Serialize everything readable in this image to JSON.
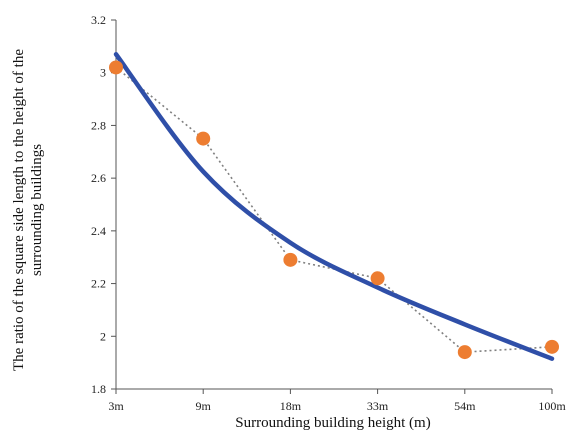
{
  "chart_data": {
    "type": "scatter",
    "title": "",
    "xlabel": "Surrounding building height (m)",
    "ylabel_line1": "The ratio of the square side length to the height of the",
    "ylabel_line2": "surrounding buildings",
    "categories": [
      "3m",
      "9m",
      "18m",
      "33m",
      "54m",
      "100m"
    ],
    "ylim": [
      1.8,
      3.2
    ],
    "yticks": [
      1.8,
      2,
      2.2,
      2.4,
      2.6,
      2.8,
      3,
      3.2
    ],
    "ytick_labels": [
      "1.8",
      "2",
      "2.2",
      "2.4",
      "2.6",
      "2.8",
      "3",
      "3.2"
    ],
    "grid": false,
    "legend": "none",
    "series": [
      {
        "type": "scatter-dotted-line",
        "values": [
          3.02,
          2.75,
          2.29,
          2.22,
          1.94,
          1.96
        ],
        "marker_color": "#ED7D31",
        "line_color": "#808080"
      },
      {
        "type": "trend-curve",
        "values": [
          3.07,
          2.625,
          2.355,
          2.185,
          2.045,
          1.915
        ],
        "line_color": "#2F4FA8"
      }
    ]
  }
}
